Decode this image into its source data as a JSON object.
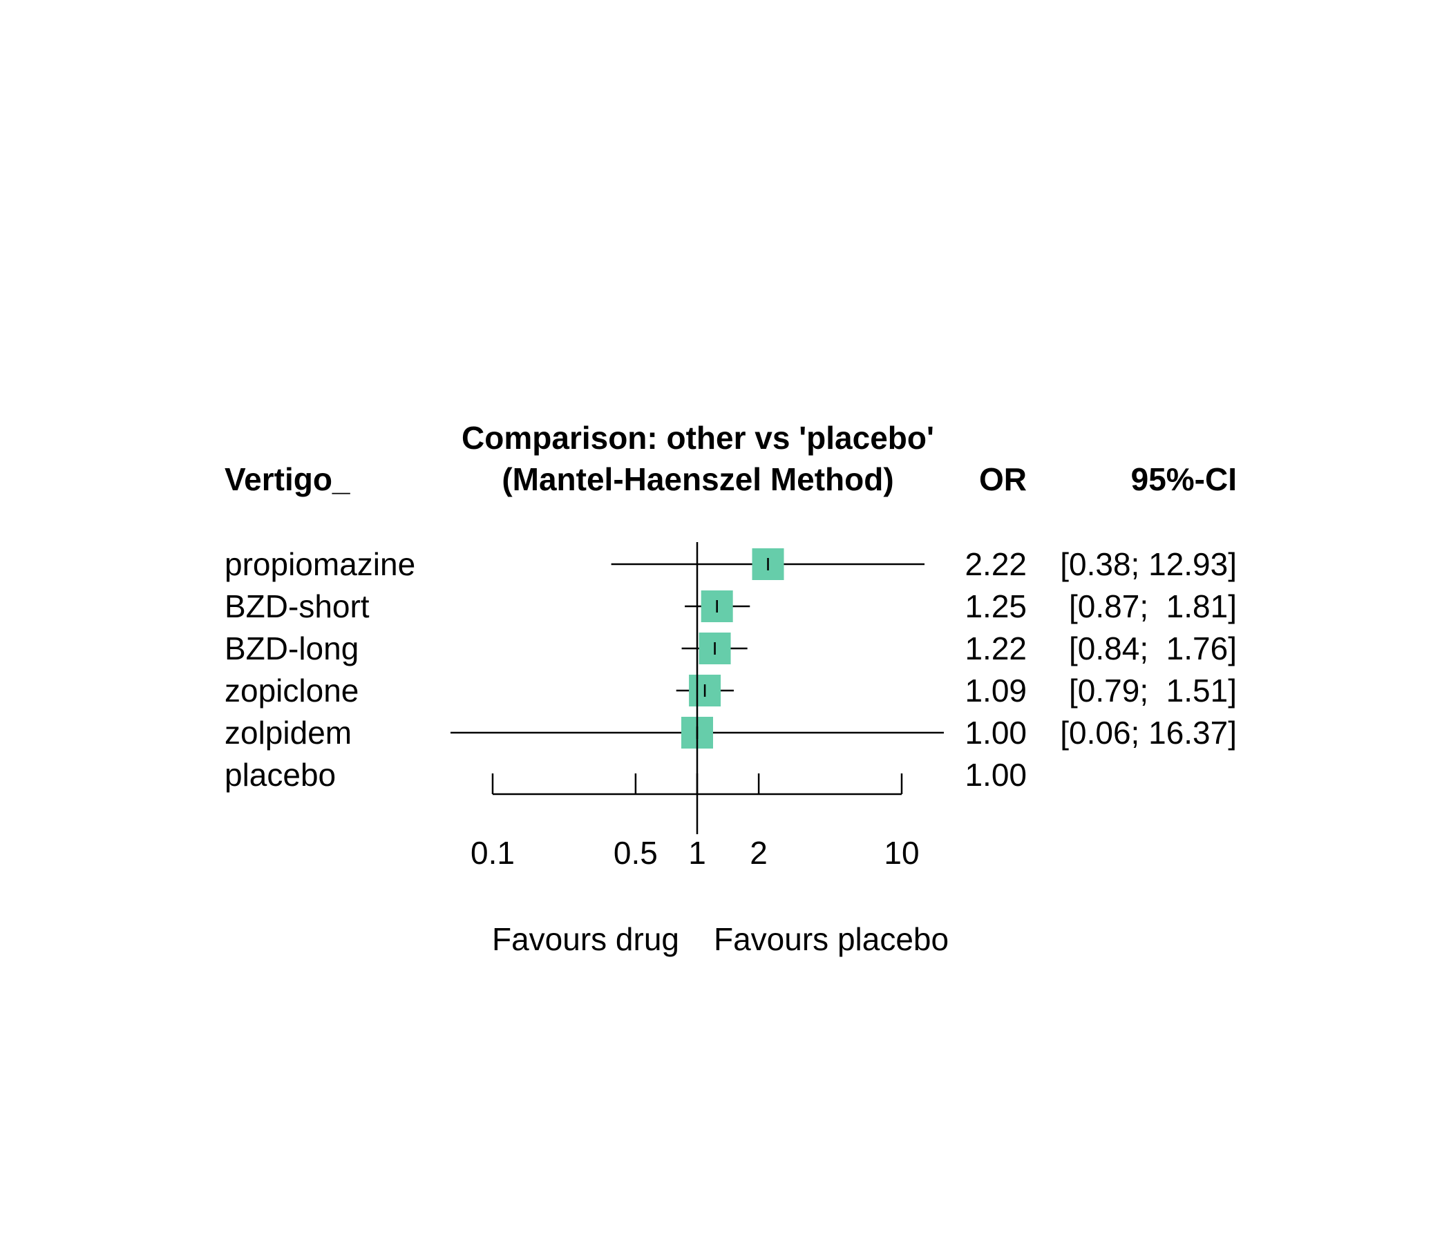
{
  "chart_data": {
    "type": "forest",
    "title": "Comparison: other vs 'placebo'",
    "subtitle": "(Mantel-Haenszel Method)",
    "label_header": "Vertigo_",
    "estimate_header": "OR",
    "ci_header": "95%-CI",
    "xscale": "log",
    "xlim": [
      0.1,
      10
    ],
    "reference": 1,
    "ticks": [
      0.1,
      0.5,
      1,
      2,
      10
    ],
    "tick_labels": [
      "0.1",
      "0.5",
      "1",
      "2",
      "10"
    ],
    "left_label": "Favours drug",
    "right_label": "Favours placebo",
    "marker_color": "#66cdaa",
    "rows": [
      {
        "label": "propiomazine",
        "or": 2.22,
        "lower": 0.38,
        "upper": 12.93,
        "or_text": "2.22",
        "ci_text": "[0.38; 12.93]"
      },
      {
        "label": "BZD-short",
        "or": 1.25,
        "lower": 0.87,
        "upper": 1.81,
        "or_text": "1.25",
        "ci_text": "[0.87;  1.81]"
      },
      {
        "label": "BZD-long",
        "or": 1.22,
        "lower": 0.84,
        "upper": 1.76,
        "or_text": "1.22",
        "ci_text": "[0.84;  1.76]"
      },
      {
        "label": "zopiclone",
        "or": 1.09,
        "lower": 0.79,
        "upper": 1.51,
        "or_text": "1.09",
        "ci_text": "[0.79;  1.51]"
      },
      {
        "label": "zolpidem",
        "or": 1.0,
        "lower": 0.06,
        "upper": 16.37,
        "or_text": "1.00",
        "ci_text": "[0.06; 16.37]"
      },
      {
        "label": "placebo",
        "or": null,
        "lower": null,
        "upper": null,
        "or_text": "1.00",
        "ci_text": ""
      }
    ]
  }
}
